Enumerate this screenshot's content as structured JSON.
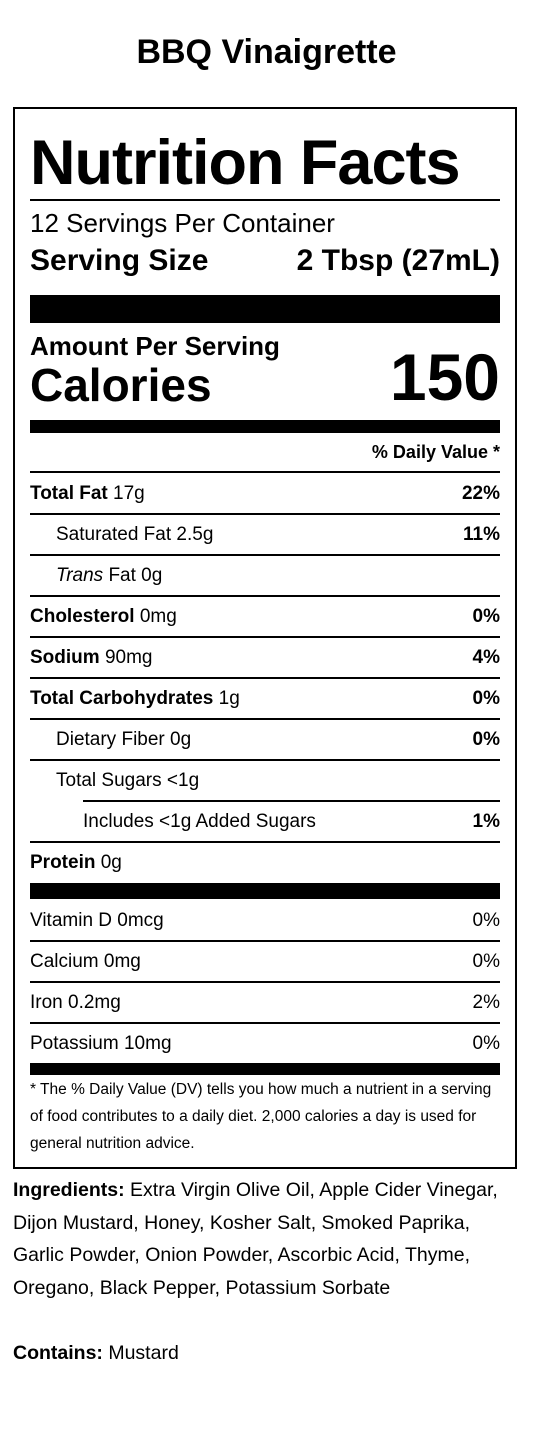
{
  "product": {
    "name": "BBQ Vinaigrette"
  },
  "panel": {
    "heading": "Nutrition Facts",
    "servings_per_container": "12 Servings Per Container",
    "serving_size_label": "Serving Size",
    "serving_size_value": "2 Tbsp (27mL)",
    "amount_per_serving": "Amount Per Serving",
    "calories_label": "Calories",
    "calories_value": "150",
    "dv_header": "% Daily Value *",
    "nutrients": [
      {
        "label": "Total Fat",
        "amount": "17g",
        "dv": "22%"
      },
      {
        "label": "Saturated Fat",
        "amount": "2.5g",
        "dv": "11%"
      },
      {
        "label": "Trans",
        "amount": "Fat 0g",
        "dv": ""
      },
      {
        "label": "Cholesterol",
        "amount": "0mg",
        "dv": "0%"
      },
      {
        "label": "Sodium",
        "amount": "90mg",
        "dv": "4%"
      },
      {
        "label": "Total Carbohydrates",
        "amount": "1g",
        "dv": "0%"
      },
      {
        "label": "Dietary Fiber",
        "amount": "0g",
        "dv": "0%"
      },
      {
        "label": "Total Sugars",
        "amount": "<1g",
        "dv": ""
      },
      {
        "label": "Includes <1g Added Sugars",
        "amount": "",
        "dv": "1%"
      },
      {
        "label": "Protein",
        "amount": "0g",
        "dv": ""
      }
    ],
    "vitamins": [
      {
        "label": "Vitamin D 0mcg",
        "dv": "0%"
      },
      {
        "label": "Calcium 0mg",
        "dv": "0%"
      },
      {
        "label": "Iron 0.2mg",
        "dv": "2%"
      },
      {
        "label": "Potassium 10mg",
        "dv": "0%"
      }
    ],
    "footnote": "* The % Daily Value (DV) tells you how much a nutrient in a serving of food contributes to a daily diet. 2,000 calories a day is used for general nutrition advice."
  },
  "ingredients": {
    "label": "Ingredients:",
    "text": "Extra Virgin Olive Oil, Apple Cider Vinegar, Dijon Mustard, Honey, Kosher Salt, Smoked Paprika, Garlic Powder, Onion Powder, Ascorbic Acid, Thyme, Oregano, Black Pepper, Potassium Sorbate"
  },
  "contains": {
    "label": "Contains:",
    "text": "Mustard"
  }
}
